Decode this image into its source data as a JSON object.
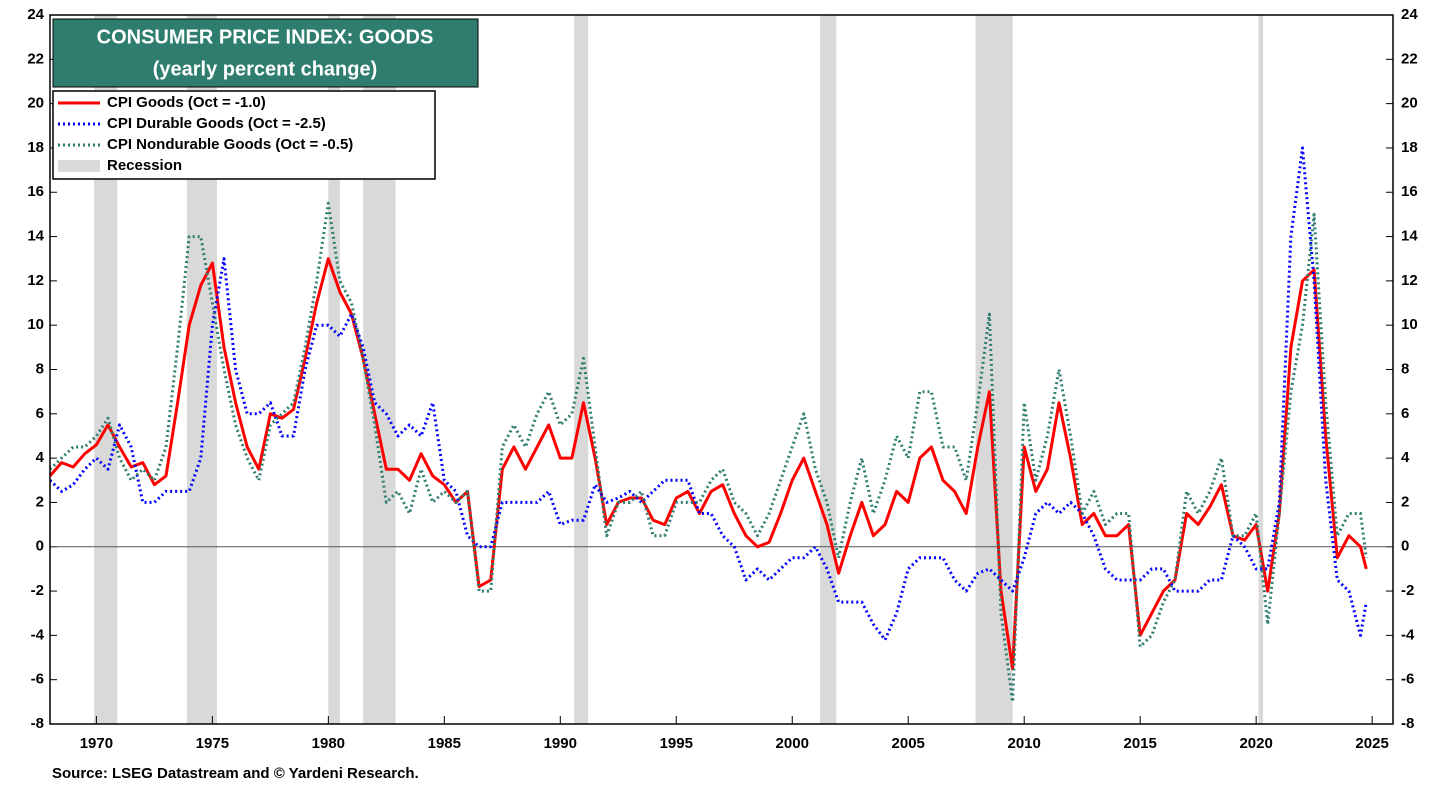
{
  "chart_data": {
    "type": "line",
    "title": "CONSUMER PRICE INDEX: GOODS",
    "subtitle": "(yearly percent change)",
    "source": "Source: LSEG Datastream and © Yardeni Research.",
    "xlim": [
      1968,
      2025.9
    ],
    "xticks": [
      1970,
      1975,
      1980,
      1985,
      1990,
      1995,
      2000,
      2005,
      2010,
      2015,
      2020,
      2025
    ],
    "ylim": [
      -8,
      24
    ],
    "yticks": [
      -8,
      -6,
      -4,
      -2,
      0,
      2,
      4,
      6,
      8,
      10,
      12,
      14,
      16,
      18,
      20,
      22,
      24
    ],
    "y2lim": [
      -8,
      24
    ],
    "y2ticks": [
      -8,
      -6,
      -4,
      -2,
      0,
      2,
      4,
      6,
      8,
      10,
      12,
      14,
      16,
      18,
      20,
      22,
      24
    ],
    "reference_line": 0,
    "recessions": {
      "name": "Recession",
      "color": "#d9d9d9",
      "periods": [
        [
          1969.9,
          1970.9
        ],
        [
          1973.9,
          1975.2
        ],
        [
          1980.0,
          1980.5
        ],
        [
          1981.5,
          1982.9
        ],
        [
          1990.6,
          1991.2
        ],
        [
          2001.2,
          2001.9
        ],
        [
          2007.9,
          2009.5
        ],
        [
          2020.1,
          2020.3
        ]
      ]
    },
    "x": [
      1968.0,
      1968.5,
      1969.0,
      1969.5,
      1970.0,
      1970.5,
      1971.0,
      1971.5,
      1972.0,
      1972.5,
      1973.0,
      1973.5,
      1974.0,
      1974.5,
      1975.0,
      1975.5,
      1976.0,
      1976.5,
      1977.0,
      1977.5,
      1978.0,
      1978.5,
      1979.0,
      1979.5,
      1980.0,
      1980.5,
      1981.0,
      1981.5,
      1982.0,
      1982.5,
      1983.0,
      1983.5,
      1984.0,
      1984.5,
      1985.0,
      1985.5,
      1986.0,
      1986.5,
      1987.0,
      1987.5,
      1988.0,
      1988.5,
      1989.0,
      1989.5,
      1990.0,
      1990.5,
      1991.0,
      1991.5,
      1992.0,
      1992.5,
      1993.0,
      1993.5,
      1994.0,
      1994.5,
      1995.0,
      1995.5,
      1996.0,
      1996.5,
      1997.0,
      1997.5,
      1998.0,
      1998.5,
      1999.0,
      1999.5,
      2000.0,
      2000.5,
      2001.0,
      2001.5,
      2002.0,
      2002.5,
      2003.0,
      2003.5,
      2004.0,
      2004.5,
      2005.0,
      2005.5,
      2006.0,
      2006.5,
      2007.0,
      2007.5,
      2008.0,
      2008.5,
      2009.0,
      2009.5,
      2010.0,
      2010.5,
      2011.0,
      2011.5,
      2012.0,
      2012.5,
      2013.0,
      2013.5,
      2014.0,
      2014.5,
      2015.0,
      2015.5,
      2016.0,
      2016.5,
      2017.0,
      2017.5,
      2018.0,
      2018.5,
      2019.0,
      2019.5,
      2020.0,
      2020.5,
      2021.0,
      2021.5,
      2022.0,
      2022.5,
      2023.0,
      2023.5,
      2024.0,
      2024.5,
      2024.75
    ],
    "series": [
      {
        "name": "CPI Goods (Oct = -1.0)",
        "color": "#ff0000",
        "dash": "solid",
        "values": [
          3.2,
          3.8,
          3.6,
          4.2,
          4.6,
          5.5,
          4.5,
          3.6,
          3.8,
          2.8,
          3.2,
          6.5,
          10.0,
          11.8,
          12.8,
          9.0,
          6.5,
          4.5,
          3.5,
          6.0,
          5.8,
          6.2,
          8.5,
          11.0,
          13.0,
          11.5,
          10.5,
          8.5,
          6.0,
          3.5,
          3.5,
          3.0,
          4.2,
          3.2,
          2.8,
          2.0,
          2.5,
          -1.8,
          -1.5,
          3.5,
          4.5,
          3.5,
          4.5,
          5.5,
          4.0,
          4.0,
          6.5,
          4.0,
          1.0,
          2.0,
          2.2,
          2.2,
          1.2,
          1.0,
          2.2,
          2.5,
          1.5,
          2.5,
          2.8,
          1.5,
          0.5,
          0.0,
          0.2,
          1.5,
          3.0,
          4.0,
          2.5,
          1.0,
          -1.2,
          0.5,
          2.0,
          0.5,
          1.0,
          2.5,
          2.0,
          4.0,
          4.5,
          3.0,
          2.5,
          1.5,
          4.5,
          7.0,
          -2.0,
          -5.5,
          4.5,
          2.5,
          3.5,
          6.5,
          4.0,
          1.0,
          1.5,
          0.5,
          0.5,
          1.0,
          -4.0,
          -3.0,
          -2.0,
          -1.5,
          1.5,
          1.0,
          1.8,
          2.8,
          0.5,
          0.3,
          1.0,
          -2.0,
          1.5,
          9.0,
          12.0,
          12.5,
          5.0,
          -0.5,
          0.5,
          0.0,
          -1.0
        ]
      },
      {
        "name": "CPI Durable Goods (Oct = -2.5)",
        "color": "#0000ff",
        "dash": "dotted",
        "values": [
          3.0,
          2.5,
          2.8,
          3.5,
          4.0,
          3.5,
          5.5,
          4.5,
          2.0,
          2.0,
          2.5,
          2.5,
          2.5,
          4.0,
          10.0,
          13.0,
          8.0,
          6.0,
          6.0,
          6.5,
          5.0,
          5.0,
          8.0,
          10.0,
          10.0,
          9.5,
          10.5,
          9.0,
          6.5,
          6.0,
          5.0,
          5.5,
          5.0,
          6.5,
          3.0,
          2.5,
          0.5,
          0.0,
          0.0,
          2.0,
          2.0,
          2.0,
          2.0,
          2.5,
          1.0,
          1.2,
          1.2,
          2.8,
          2.0,
          2.2,
          2.5,
          2.0,
          2.5,
          3.0,
          3.0,
          3.0,
          1.5,
          1.5,
          0.5,
          0.0,
          -1.5,
          -1.0,
          -1.5,
          -1.0,
          -0.5,
          -0.5,
          0.0,
          -1.0,
          -2.5,
          -2.5,
          -2.5,
          -3.5,
          -4.2,
          -3.0,
          -1.0,
          -0.5,
          -0.5,
          -0.5,
          -1.5,
          -2.0,
          -1.2,
          -1.0,
          -1.5,
          -2.0,
          -0.5,
          1.5,
          2.0,
          1.5,
          2.0,
          1.5,
          0.5,
          -1.0,
          -1.5,
          -1.5,
          -1.5,
          -1.0,
          -1.0,
          -2.0,
          -2.0,
          -2.0,
          -1.5,
          -1.5,
          0.5,
          0.0,
          -1.0,
          -1.0,
          2.0,
          14.0,
          18.0,
          12.0,
          3.0,
          -1.5,
          -2.0,
          -4.0,
          -2.5
        ]
      },
      {
        "name": "CPI Nondurable Goods (Oct = -0.5)",
        "color": "#2e7d6e",
        "dash": "dotted",
        "values": [
          3.5,
          4.0,
          4.5,
          4.5,
          5.0,
          5.8,
          4.0,
          3.0,
          3.5,
          3.0,
          4.5,
          9.0,
          14.0,
          14.0,
          11.0,
          8.0,
          5.5,
          4.0,
          3.0,
          5.5,
          6.0,
          6.5,
          9.0,
          12.0,
          15.5,
          12.0,
          11.0,
          8.5,
          5.5,
          2.0,
          2.5,
          1.5,
          3.5,
          2.0,
          2.5,
          2.0,
          2.5,
          -2.0,
          -2.0,
          4.5,
          5.5,
          4.5,
          6.0,
          7.0,
          5.5,
          6.0,
          8.5,
          4.5,
          0.5,
          2.0,
          2.0,
          2.5,
          0.5,
          0.5,
          2.0,
          2.0,
          2.0,
          3.0,
          3.5,
          2.0,
          1.5,
          0.5,
          1.5,
          3.0,
          4.5,
          6.0,
          3.5,
          2.0,
          -0.5,
          2.0,
          4.0,
          1.5,
          3.0,
          5.0,
          4.0,
          7.0,
          7.0,
          4.5,
          4.5,
          3.0,
          6.5,
          10.5,
          -3.0,
          -7.0,
          6.5,
          3.0,
          5.0,
          8.0,
          5.0,
          1.5,
          2.5,
          1.0,
          1.5,
          1.5,
          -4.5,
          -4.0,
          -2.5,
          -1.5,
          2.5,
          1.5,
          2.5,
          4.0,
          0.5,
          0.5,
          1.5,
          -3.5,
          1.5,
          7.0,
          10.0,
          15.0,
          6.5,
          0.5,
          1.5,
          1.5,
          -0.5
        ]
      }
    ]
  }
}
